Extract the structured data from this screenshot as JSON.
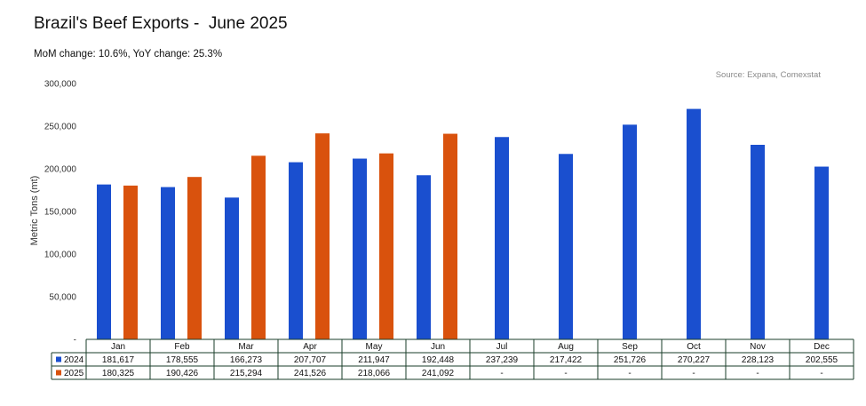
{
  "title": "Brazil's Beef Exports -  June 2025",
  "subtitle": "MoM change: 10.6%, YoY change: 25.3%",
  "source": "Source: Expana, Comexstat",
  "colors": {
    "s2024": "#1a4fcf",
    "s2025": "#d9520d"
  },
  "chart_data": {
    "type": "bar",
    "title": "Brazil's Beef Exports -  June 2025",
    "subtitle": "MoM change: 10.6%, YoY change: 25.3%",
    "ylabel": "Metric Tons (mt)",
    "ylim": [
      0,
      300000
    ],
    "yticks": [
      "-",
      "50,000",
      "100,000",
      "150,000",
      "200,000",
      "250,000",
      "300,000"
    ],
    "categories": [
      "Jan",
      "Feb",
      "Mar",
      "Apr",
      "May",
      "Jun",
      "Jul",
      "Aug",
      "Sep",
      "Oct",
      "Nov",
      "Dec"
    ],
    "series": [
      {
        "name": "2024",
        "values": [
          181617,
          178555,
          166273,
          207707,
          211947,
          192448,
          237239,
          217422,
          251726,
          270227,
          228123,
          202555
        ],
        "labels": [
          "181,617",
          "178,555",
          "166,273",
          "207,707",
          "211,947",
          "192,448",
          "237,239",
          "217,422",
          "251,726",
          "270,227",
          "228,123",
          "202,555"
        ]
      },
      {
        "name": "2025",
        "values": [
          180325,
          190426,
          215294,
          241526,
          218066,
          241092,
          null,
          null,
          null,
          null,
          null,
          null
        ],
        "labels": [
          "180,325",
          "190,426",
          "215,294",
          "241,526",
          "218,066",
          "241,092",
          "-",
          "-",
          "-",
          "-",
          "-",
          "-"
        ]
      }
    ],
    "grid": false,
    "legend": "data-table"
  }
}
